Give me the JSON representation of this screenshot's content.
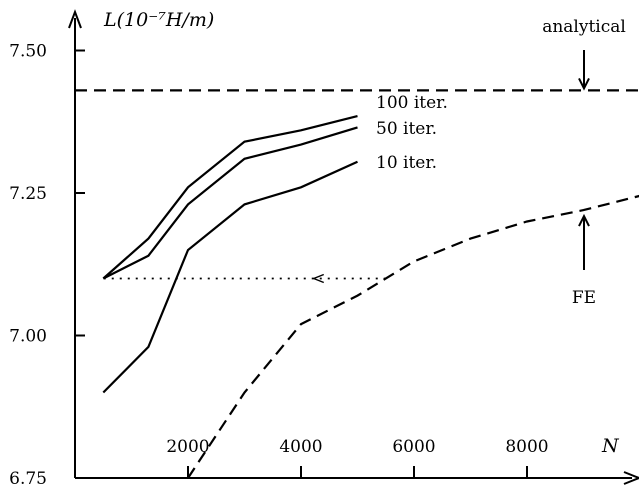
{
  "chart_data": {
    "type": "line",
    "ylabel": "L(10⁻⁷H/m)",
    "xlabel": "N",
    "xlim": [
      0,
      10000
    ],
    "ylim": [
      6.75,
      7.55
    ],
    "x_ticks": [
      2000,
      4000,
      6000,
      8000
    ],
    "x_tick_labels": [
      "2000",
      "4000",
      "6000",
      "8000"
    ],
    "y_ticks": [
      6.75,
      7.0,
      7.25,
      7.5
    ],
    "y_tick_labels": [
      "6.75",
      "7.00",
      "7.25",
      "7.50"
    ],
    "grid": false,
    "series": [
      {
        "name": "100 iter.",
        "style": "solid",
        "x": [
          500,
          1300,
          2000,
          3000,
          4000,
          5000
        ],
        "y": [
          7.1,
          7.17,
          7.26,
          7.34,
          7.36,
          7.385
        ]
      },
      {
        "name": "50 iter.",
        "style": "solid",
        "x": [
          500,
          1300,
          2000,
          3000,
          4000,
          5000
        ],
        "y": [
          7.1,
          7.14,
          7.23,
          7.31,
          7.335,
          7.365
        ]
      },
      {
        "name": "10 iter.",
        "style": "solid",
        "x": [
          500,
          1300,
          2000,
          3000,
          4000,
          5000
        ],
        "y": [
          6.9,
          6.98,
          7.15,
          7.23,
          7.26,
          7.305
        ]
      },
      {
        "name": "FE",
        "style": "dashed",
        "x": [
          2000,
          3000,
          4000,
          5000,
          6000,
          7000,
          8000,
          9000,
          10000
        ],
        "y": [
          6.75,
          6.9,
          7.02,
          7.07,
          7.13,
          7.17,
          7.2,
          7.22,
          7.245
        ]
      },
      {
        "name": "analytical",
        "style": "dashed",
        "x": [
          0,
          10000
        ],
        "y": [
          7.43,
          7.43
        ]
      }
    ],
    "reference_line": {
      "style": "dotted",
      "y": 7.1,
      "x_from": 5500,
      "x_to": 500
    },
    "annotations": [
      {
        "text": "analytical",
        "target_series": "analytical"
      },
      {
        "text": "FE",
        "target_series": "FE"
      }
    ],
    "series_labels": [
      "100 iter.",
      "50 iter.",
      "10 iter."
    ]
  }
}
